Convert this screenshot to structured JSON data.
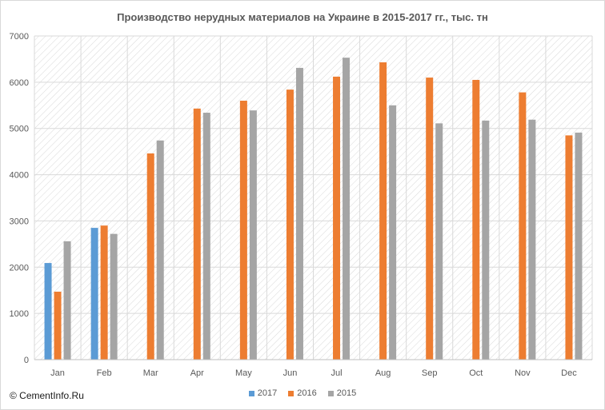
{
  "chart_data": {
    "type": "bar",
    "title": "Производство нерудных материалов на Украине  в 2015-2017  гг., тыс. тн",
    "categories": [
      "Jan",
      "Feb",
      "Mar",
      "Apr",
      "May",
      "Jun",
      "Jul",
      "Aug",
      "Sep",
      "Oct",
      "Nov",
      "Dec"
    ],
    "series": [
      {
        "name": "2017",
        "color": "#5B9BD5",
        "values": [
          2090,
          2850,
          null,
          null,
          null,
          null,
          null,
          null,
          null,
          null,
          null,
          null
        ]
      },
      {
        "name": "2016",
        "color": "#ED7D31",
        "values": [
          1470,
          2900,
          4460,
          5430,
          5600,
          5840,
          6120,
          6430,
          6100,
          6050,
          5780,
          4850
        ]
      },
      {
        "name": "2015",
        "color": "#A5A5A5",
        "values": [
          2560,
          2720,
          4740,
          5340,
          5390,
          6310,
          6530,
          5500,
          5110,
          5170,
          5190,
          4910
        ]
      }
    ],
    "ylim": [
      0,
      7000
    ],
    "yticks": [
      0,
      1000,
      2000,
      3000,
      4000,
      5000,
      6000,
      7000
    ],
    "grid": true,
    "legend": "bottom"
  },
  "footer": {
    "copyright": "© CementInfo.Ru"
  }
}
